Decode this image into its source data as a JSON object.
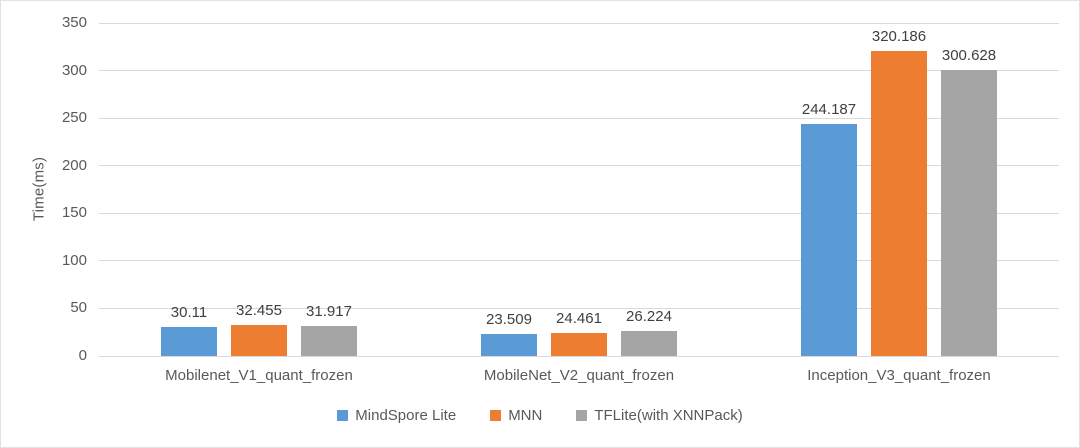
{
  "chart_data": {
    "type": "bar",
    "title": "",
    "xlabel": "",
    "ylabel": "Time(ms)",
    "ylim": [
      0,
      350
    ],
    "yticks": [
      0,
      50,
      100,
      150,
      200,
      250,
      300,
      350
    ],
    "grid": true,
    "legend_position": "bottom",
    "categories": [
      "Mobilenet_V1_quant_frozen",
      "MobileNet_V2_quant_frozen",
      "Inception_V3_quant_frozen"
    ],
    "series": [
      {
        "name": "MindSpore Lite",
        "color": "#5B9BD5",
        "values": [
          30.11,
          23.509,
          244.187
        ]
      },
      {
        "name": "MNN",
        "color": "#ED7D31",
        "values": [
          32.455,
          24.461,
          320.186
        ]
      },
      {
        "name": "TFLite(with XNNPack)",
        "color": "#A5A5A5",
        "values": [
          31.917,
          26.224,
          300.628
        ]
      }
    ],
    "data_labels": [
      [
        "30.11",
        "23.509",
        "244.187"
      ],
      [
        "32.455",
        "24.461",
        "320.186"
      ],
      [
        "31.917",
        "26.224",
        "300.628"
      ]
    ]
  },
  "style": {
    "gridline_color": "#d9d9d9",
    "axis_text_color": "#595959",
    "data_label_color": "#404040",
    "background": "#ffffff"
  }
}
